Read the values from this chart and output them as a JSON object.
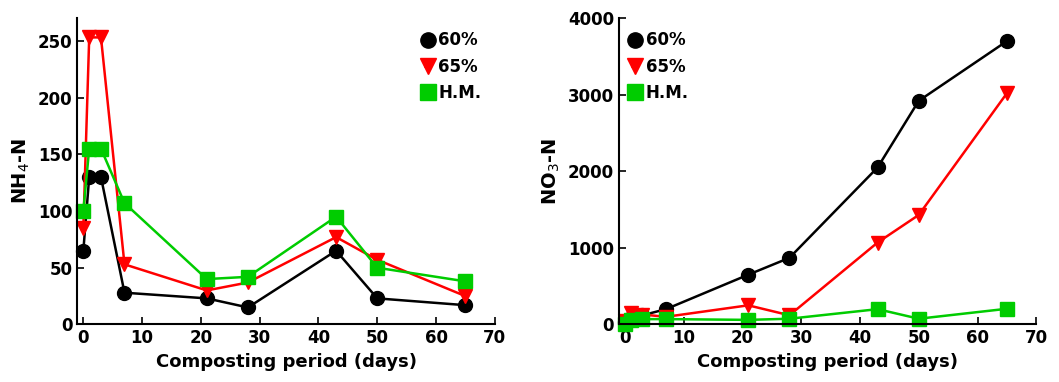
{
  "left": {
    "xlabel": "Composting period (days)",
    "ylabel": "NH$_4$-N",
    "xlim": [
      -1,
      70
    ],
    "ylim": [
      0,
      270
    ],
    "yticks": [
      0,
      50,
      100,
      150,
      200,
      250
    ],
    "xticks": [
      0,
      10,
      20,
      30,
      40,
      50,
      60,
      70
    ],
    "series": {
      "60%": {
        "x": [
          0,
          1,
          3,
          7,
          21,
          28,
          43,
          50,
          65
        ],
        "y": [
          65,
          130,
          130,
          28,
          23,
          15,
          65,
          23,
          17
        ],
        "color": "#000000",
        "marker": "o",
        "ms": 10
      },
      "65%": {
        "x": [
          0,
          1,
          3,
          7,
          21,
          28,
          43,
          50,
          65
        ],
        "y": [
          85,
          253,
          253,
          53,
          30,
          37,
          77,
          57,
          25
        ],
        "color": "#ff0000",
        "marker": "v",
        "ms": 10
      },
      "H.M.": {
        "x": [
          0,
          1,
          3,
          7,
          21,
          28,
          43,
          50,
          65
        ],
        "y": [
          100,
          155,
          155,
          107,
          40,
          42,
          95,
          50,
          38
        ],
        "color": "#00cc00",
        "marker": "s",
        "ms": 10
      }
    },
    "legend_loc": "upper right",
    "legend_bbox": null
  },
  "right": {
    "xlabel": "Composting period (days)",
    "ylabel": "NO$_3$-N",
    "xlim": [
      -1,
      70
    ],
    "ylim": [
      0,
      4000
    ],
    "yticks": [
      0,
      1000,
      2000,
      3000,
      4000
    ],
    "xticks": [
      0,
      10,
      20,
      30,
      40,
      50,
      60,
      70
    ],
    "series": {
      "60%": {
        "x": [
          0,
          1,
          3,
          7,
          21,
          28,
          43,
          50,
          65
        ],
        "y": [
          30,
          80,
          120,
          200,
          650,
          870,
          2050,
          2920,
          3700
        ],
        "color": "#000000",
        "marker": "o",
        "ms": 10
      },
      "65%": {
        "x": [
          0,
          1,
          3,
          7,
          21,
          28,
          43,
          50,
          65
        ],
        "y": [
          50,
          150,
          130,
          100,
          250,
          120,
          1070,
          1430,
          3020
        ],
        "color": "#ff0000",
        "marker": "v",
        "ms": 10
      },
      "H.M.": {
        "x": [
          0,
          1,
          3,
          7,
          21,
          28,
          43,
          50,
          65
        ],
        "y": [
          10,
          60,
          70,
          70,
          60,
          75,
          200,
          75,
          205
        ],
        "color": "#00cc00",
        "marker": "s",
        "ms": 10
      }
    },
    "legend_loc": "upper left",
    "legend_bbox": null
  }
}
